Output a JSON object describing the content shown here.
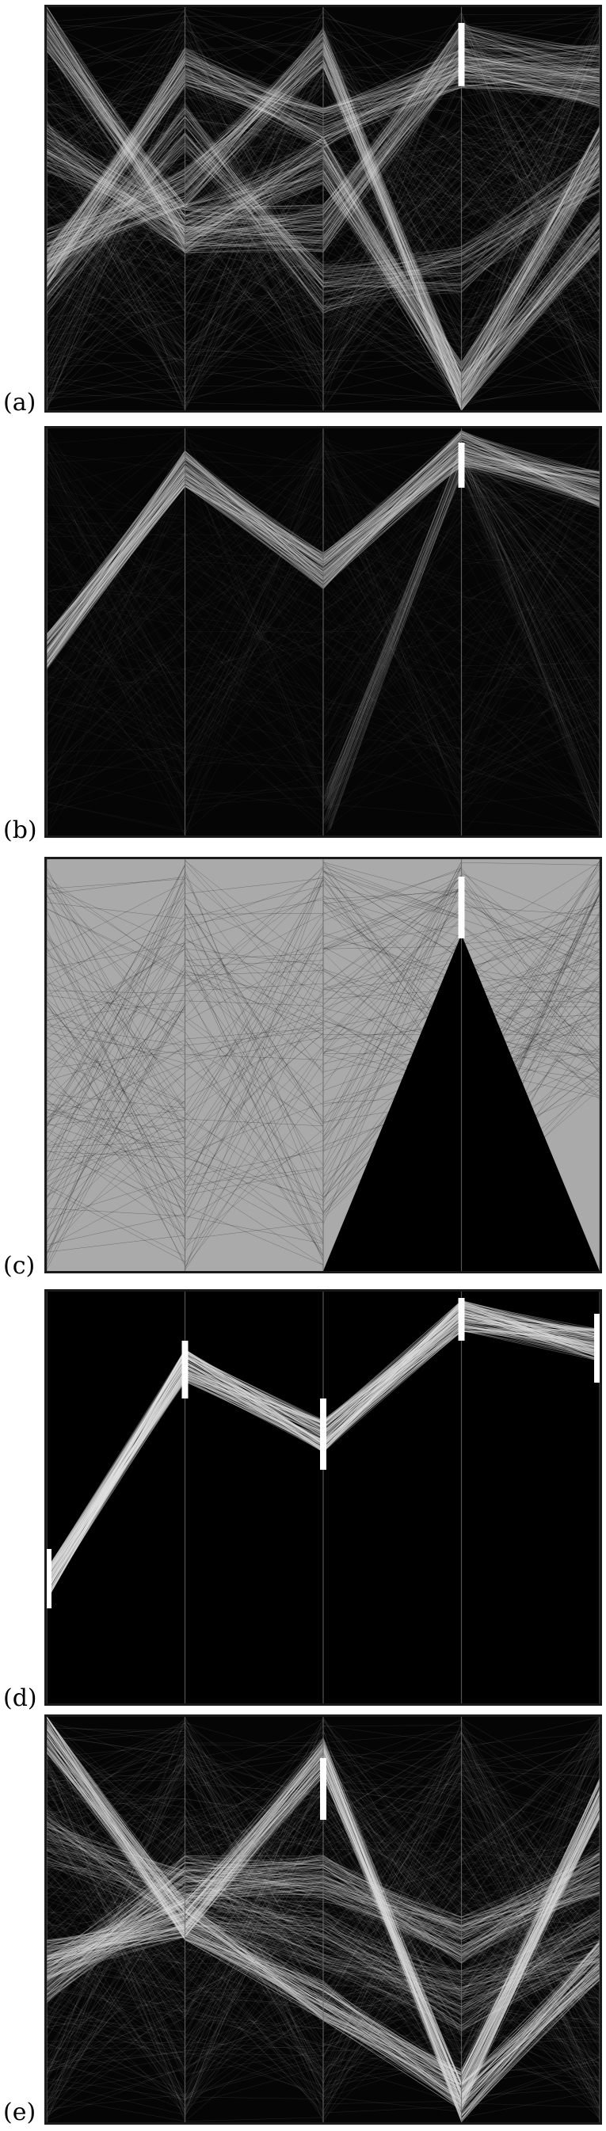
{
  "figure": {
    "panels": [
      {
        "label": "(a)",
        "background": "#050505",
        "line_color": "#d9d9d9",
        "highlight_color": "#ffffff",
        "description_hidden": true
      },
      {
        "label": "(b)",
        "background": "#050505",
        "line_color": "#d9d9d9",
        "highlight_color": "#ffffff"
      },
      {
        "label": "(c)",
        "background": "#000000",
        "line_color": "#c8c8c8",
        "highlight_color": "#ffffff"
      },
      {
        "label": "(d)",
        "background": "#000000",
        "line_color": "#e6e6e6",
        "highlight_color": "#ffffff"
      },
      {
        "label": "(e)",
        "background": "#050505",
        "line_color": "#e0e0e0",
        "highlight_color": "#ffffff"
      }
    ]
  }
}
